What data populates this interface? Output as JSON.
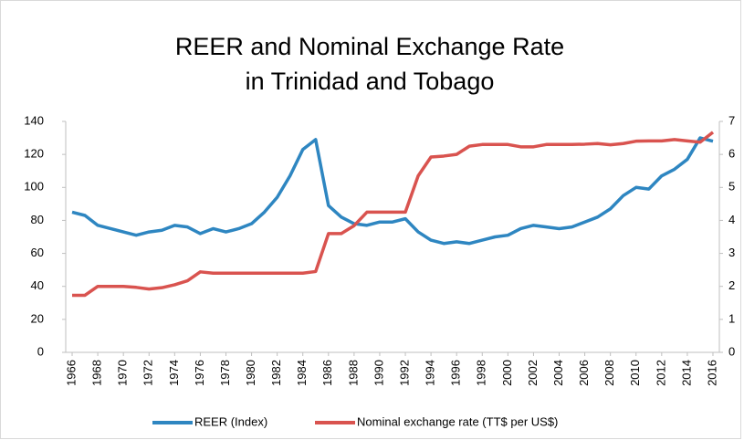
{
  "chart_data": {
    "type": "line",
    "title": "REER and Nominal Exchange Rate in Trinidad and Tobago",
    "x": [
      1966,
      1967,
      1968,
      1969,
      1970,
      1971,
      1972,
      1973,
      1974,
      1975,
      1976,
      1977,
      1978,
      1979,
      1980,
      1981,
      1982,
      1983,
      1984,
      1985,
      1986,
      1987,
      1988,
      1989,
      1990,
      1991,
      1992,
      1993,
      1994,
      1995,
      1996,
      1997,
      1998,
      1999,
      2000,
      2001,
      2002,
      2003,
      2004,
      2005,
      2006,
      2007,
      2008,
      2009,
      2010,
      2011,
      2012,
      2013,
      2014,
      2015,
      2016
    ],
    "xlim": [
      1965.5,
      2016.5
    ],
    "xticks": [
      1966,
      1968,
      1970,
      1972,
      1974,
      1976,
      1978,
      1980,
      1982,
      1984,
      1986,
      1988,
      1990,
      1992,
      1994,
      1996,
      1998,
      2000,
      2002,
      2004,
      2006,
      2008,
      2010,
      2012,
      2014,
      2016
    ],
    "ylim": [
      0,
      140
    ],
    "yticks": [
      0,
      20,
      40,
      60,
      80,
      100,
      120,
      140
    ],
    "y2lim": [
      0,
      7
    ],
    "y2ticks": [
      0,
      1,
      2,
      3,
      4,
      5,
      6,
      7
    ],
    "grid": false,
    "legend": "bottom",
    "series": [
      {
        "name": "REER (Index)",
        "color": "#2e86c1",
        "values": [
          85,
          83,
          77,
          75,
          73,
          71,
          73,
          74,
          77,
          76,
          72,
          75,
          73,
          75,
          78,
          85,
          94,
          107,
          123,
          129,
          89,
          82,
          78,
          77,
          79,
          79,
          81,
          73,
          68,
          66,
          67,
          66,
          68,
          70,
          71,
          75,
          77,
          76,
          75,
          76,
          79,
          82,
          87,
          95,
          100,
          99,
          107,
          111,
          117,
          130,
          128
        ]
      },
      {
        "name": "Nominal exchange rate (TT$ per US$)",
        "color": "#d9534f",
        "axis": "y2",
        "values": [
          1.73,
          1.73,
          2.0,
          2.0,
          2.0,
          1.97,
          1.92,
          1.96,
          2.05,
          2.17,
          2.44,
          2.4,
          2.4,
          2.4,
          2.4,
          2.4,
          2.4,
          2.4,
          2.4,
          2.45,
          3.6,
          3.6,
          3.84,
          4.25,
          4.25,
          4.25,
          4.25,
          5.35,
          5.92,
          5.95,
          6.0,
          6.25,
          6.3,
          6.3,
          6.3,
          6.23,
          6.23,
          6.3,
          6.3,
          6.3,
          6.31,
          6.33,
          6.29,
          6.33,
          6.4,
          6.41,
          6.41,
          6.45,
          6.41,
          6.37,
          6.67
        ]
      }
    ]
  }
}
